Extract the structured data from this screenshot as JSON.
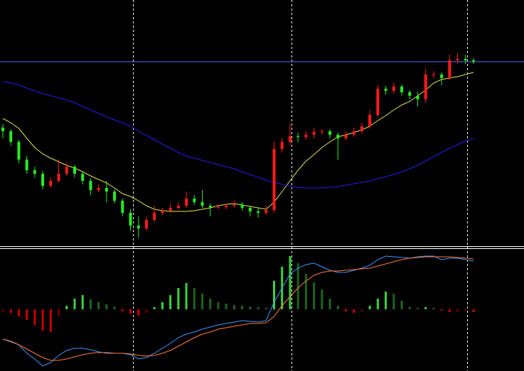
{
  "chart_data": [
    {
      "type": "candlestick",
      "ylim": [
        0,
        345
      ],
      "up_color": "#ff1a1a",
      "down_color": "#22ee22",
      "hline": 258,
      "hline_color": "#4f6fff",
      "open": [
        165,
        160,
        145,
        120,
        105,
        100,
        83,
        90,
        100,
        110,
        100,
        90,
        77,
        80,
        75,
        62,
        45,
        27,
        23,
        35,
        45,
        48,
        52,
        55,
        65,
        60,
        55,
        53,
        53,
        55,
        57,
        52,
        47,
        45,
        49,
        135,
        145,
        153,
        152,
        155,
        159,
        160,
        155,
        150,
        155,
        160,
        167,
        183,
        220,
        217,
        223,
        215,
        210,
        205,
        240,
        240,
        235,
        260,
        262,
        260
      ],
      "high": [
        170,
        163,
        148,
        125,
        110,
        104,
        95,
        120,
        115,
        113,
        103,
        94,
        85,
        90,
        78,
        65,
        50,
        40,
        40,
        55,
        52,
        58,
        60,
        75,
        70,
        77,
        58,
        57,
        58,
        62,
        60,
        55,
        52,
        55,
        145,
        150,
        170,
        158,
        160,
        165,
        163,
        163,
        158,
        160,
        165,
        172,
        190,
        225,
        224,
        228,
        226,
        218,
        215,
        248,
        245,
        243,
        268,
        270,
        268,
        263
      ],
      "low": [
        150,
        140,
        115,
        100,
        95,
        78,
        80,
        88,
        97,
        95,
        85,
        70,
        74,
        60,
        58,
        40,
        20,
        10,
        20,
        32,
        42,
        45,
        49,
        52,
        56,
        52,
        40,
        50,
        50,
        52,
        48,
        40,
        38,
        42,
        45,
        130,
        140,
        145,
        148,
        150,
        155,
        150,
        120,
        147,
        152,
        157,
        164,
        180,
        212,
        213,
        210,
        205,
        195,
        200,
        235,
        225,
        232,
        256,
        255,
        255
      ],
      "close": [
        160,
        145,
        120,
        105,
        100,
        83,
        90,
        100,
        110,
        100,
        90,
        77,
        80,
        75,
        62,
        45,
        27,
        23,
        35,
        45,
        48,
        52,
        55,
        65,
        60,
        55,
        53,
        53,
        55,
        57,
        52,
        47,
        45,
        49,
        135,
        145,
        153,
        152,
        155,
        159,
        160,
        155,
        150,
        155,
        160,
        167,
        183,
        220,
        217,
        223,
        215,
        210,
        205,
        240,
        240,
        235,
        260,
        262,
        260,
        258
      ],
      "series": [
        {
          "color": "#e6e64c",
          "values": [
            178,
            172,
            164,
            150,
            137,
            128,
            122,
            117,
            112,
            108,
            103,
            97,
            92,
            87,
            80,
            72,
            68,
            62,
            55,
            50,
            48,
            47,
            47,
            47,
            48,
            50,
            52,
            55,
            57,
            58,
            56,
            54,
            52,
            50,
            60,
            75,
            90,
            105,
            118,
            127,
            137,
            145,
            152,
            155,
            158,
            162,
            167,
            175,
            182,
            190,
            197,
            202,
            210,
            218,
            228,
            233,
            235,
            237,
            240,
            243
          ]
        },
        {
          "color": "#1f1fe6",
          "values": [
            230,
            228,
            225,
            221,
            217,
            213,
            210,
            207,
            204,
            200,
            195,
            190,
            185,
            180,
            176,
            172,
            167,
            160,
            154,
            148,
            142,
            136,
            130,
            125,
            122,
            119,
            116,
            113,
            110,
            107,
            103,
            99,
            95,
            91,
            88,
            85,
            83,
            81,
            80,
            80,
            80,
            81,
            82,
            84,
            86,
            88,
            90,
            93,
            96,
            99,
            103,
            107,
            112,
            118,
            124,
            130,
            136,
            141,
            146,
            150
          ]
        }
      ]
    },
    {
      "type": "histogram",
      "ylim": [
        -87,
        86
      ],
      "colors": {
        "up_pos": "#39d439",
        "down_pos": "#1d631d",
        "up_neg": "#6b0000",
        "down_neg": "#c80000"
      },
      "values": [
        -3,
        -5,
        -10,
        -15,
        -22,
        -30,
        -32,
        -10,
        5,
        15,
        20,
        14,
        10,
        7,
        4,
        -3,
        -6,
        -9,
        -5,
        3,
        10,
        20,
        30,
        37,
        30,
        22,
        15,
        10,
        8,
        6,
        5,
        4,
        3,
        2,
        40,
        60,
        75,
        65,
        50,
        38,
        28,
        15,
        5,
        -3,
        -5,
        -3,
        5,
        15,
        25,
        22,
        12,
        3,
        2,
        3,
        2,
        -2,
        -4,
        -3,
        -2,
        -4
      ],
      "series": [
        {
          "color": "#3c96ff",
          "values": [
            -42,
            -46,
            -50,
            -62,
            -70,
            -80,
            -75,
            -65,
            -58,
            -55,
            -55,
            -57,
            -60,
            -62,
            -62,
            -62,
            -64,
            -70,
            -68,
            -62,
            -55,
            -48,
            -40,
            -35,
            -32,
            -28,
            -25,
            -22,
            -20,
            -18,
            -16,
            -17,
            -18,
            -16,
            10,
            30,
            50,
            58,
            63,
            65,
            60,
            55,
            52,
            52,
            55,
            58,
            62,
            70,
            75,
            74,
            73,
            72,
            74,
            75,
            75,
            70,
            72,
            72,
            70,
            68
          ]
        },
        {
          "color": "#ff7a3c",
          "values": [
            -42,
            -45,
            -50,
            -56,
            -62,
            -68,
            -72,
            -72,
            -70,
            -67,
            -64,
            -62,
            -61,
            -61,
            -62,
            -62,
            -63,
            -65,
            -66,
            -65,
            -62,
            -58,
            -52,
            -46,
            -40,
            -35,
            -32,
            -28,
            -26,
            -24,
            -22,
            -20,
            -20,
            -19,
            -10,
            5,
            18,
            30,
            40,
            48,
            52,
            54,
            54,
            55,
            56,
            57,
            58,
            61,
            64,
            67,
            70,
            72,
            73,
            74,
            74,
            74,
            74,
            73,
            72,
            71
          ]
        }
      ]
    }
  ]
}
